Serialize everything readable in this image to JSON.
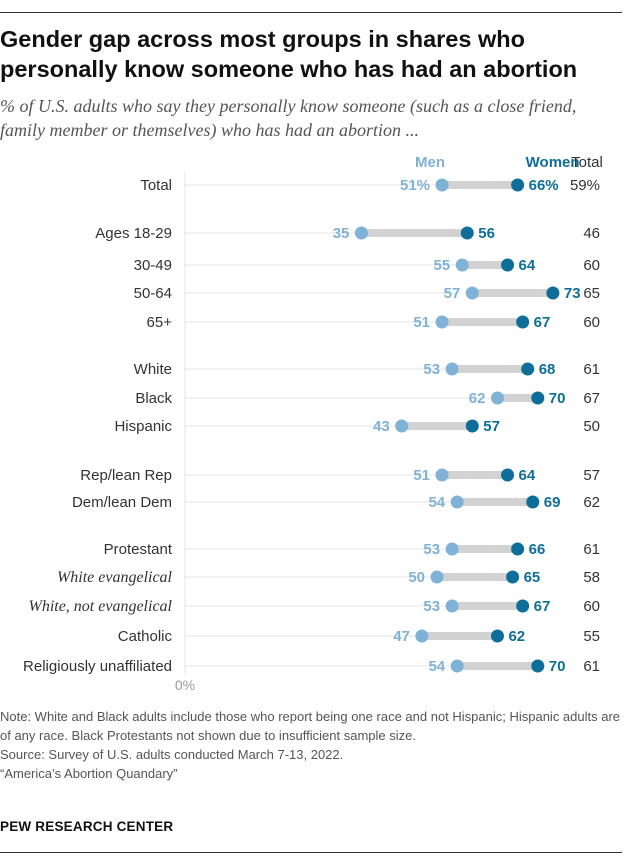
{
  "chart_data": {
    "type": "dot",
    "title": "Gender gap across most groups in shares who personally know someone who has had an abortion",
    "subtitle": "% of U.S. adults who say they personally know someone (such as a close friend, family member or themselves) who has had an abortion ...",
    "column_headers": {
      "men": "Men",
      "women": "Women",
      "total": "Total"
    },
    "axis_label": "0%",
    "xlim": [
      0,
      100
    ],
    "rows": [
      {
        "label": "Total",
        "men": 51,
        "women": 66,
        "total": 59,
        "men_label": "51%",
        "women_label": "66%",
        "total_label": "59%",
        "italic": false
      },
      {
        "label": "Ages 18-29",
        "men": 35,
        "women": 56,
        "total": 46,
        "men_label": "35",
        "women_label": "56",
        "total_label": "46",
        "italic": false
      },
      {
        "label": "30-49",
        "men": 55,
        "women": 64,
        "total": 60,
        "men_label": "55",
        "women_label": "64",
        "total_label": "60",
        "italic": false
      },
      {
        "label": "50-64",
        "men": 57,
        "women": 73,
        "total": 65,
        "men_label": "57",
        "women_label": "73",
        "total_label": "65",
        "italic": false
      },
      {
        "label": "65+",
        "men": 51,
        "women": 67,
        "total": 60,
        "men_label": "51",
        "women_label": "67",
        "total_label": "60",
        "italic": false
      },
      {
        "label": "White",
        "men": 53,
        "women": 68,
        "total": 61,
        "men_label": "53",
        "women_label": "68",
        "total_label": "61",
        "italic": false
      },
      {
        "label": "Black",
        "men": 62,
        "women": 70,
        "total": 67,
        "men_label": "62",
        "women_label": "70",
        "total_label": "67",
        "italic": false
      },
      {
        "label": "Hispanic",
        "men": 43,
        "women": 57,
        "total": 50,
        "men_label": "43",
        "women_label": "57",
        "total_label": "50",
        "italic": false
      },
      {
        "label": "Rep/lean Rep",
        "men": 51,
        "women": 64,
        "total": 57,
        "men_label": "51",
        "women_label": "64",
        "total_label": "57",
        "italic": false
      },
      {
        "label": "Dem/lean Dem",
        "men": 54,
        "women": 69,
        "total": 62,
        "men_label": "54",
        "women_label": "69",
        "total_label": "62",
        "italic": false
      },
      {
        "label": "Protestant",
        "men": 53,
        "women": 66,
        "total": 61,
        "men_label": "53",
        "women_label": "66",
        "total_label": "61",
        "italic": false
      },
      {
        "label": "White evangelical",
        "men": 50,
        "women": 65,
        "total": 58,
        "men_label": "50",
        "women_label": "65",
        "total_label": "58",
        "italic": true
      },
      {
        "label": "White, not evangelical",
        "men": 53,
        "women": 67,
        "total": 60,
        "men_label": "53",
        "women_label": "67",
        "total_label": "60",
        "italic": true
      },
      {
        "label": "Catholic",
        "men": 47,
        "women": 62,
        "total": 55,
        "men_label": "47",
        "women_label": "62",
        "total_label": "55",
        "italic": false
      },
      {
        "label": "Religiously unaffiliated",
        "men": 54,
        "women": 70,
        "total": 61,
        "men_label": "54",
        "women_label": "70",
        "total_label": "61",
        "italic": false
      }
    ],
    "groups": [
      [
        0
      ],
      [
        1,
        2,
        3,
        4
      ],
      [
        5,
        6,
        7
      ],
      [
        8,
        9
      ],
      [
        10,
        11,
        12,
        13,
        14
      ]
    ]
  },
  "colors": {
    "men": "#7fb2d6",
    "women": "#0e6e99",
    "connector": "#d2d2d2",
    "gridline": "#e4e4e4",
    "label": "#333333",
    "total": "#333333"
  },
  "notes": {
    "note": "Note: White and Black adults include those who report being one race and not Hispanic; Hispanic adults are of any race. Black Protestants not shown due to insufficient sample size.",
    "source": "Source: Survey of U.S. adults conducted March 7-13, 2022.",
    "report": "“America’s Abortion Quandary”"
  },
  "footer": {
    "org": "PEW RESEARCH CENTER"
  }
}
